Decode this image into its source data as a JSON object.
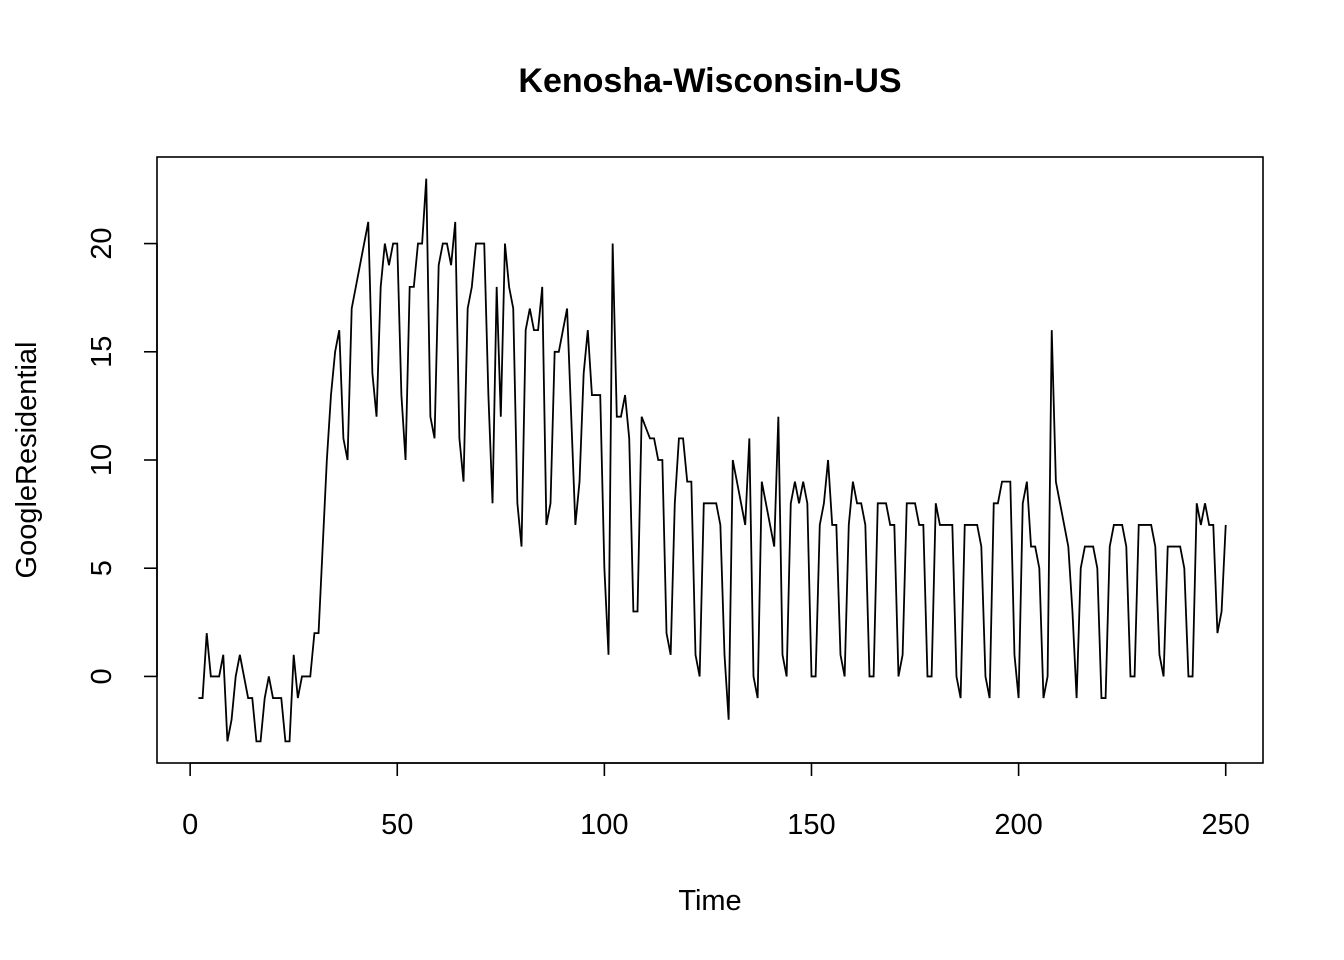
{
  "chart_data": {
    "type": "line",
    "title": "Kenosha-Wisconsin-US",
    "xlabel": "Time",
    "ylabel": "GoogleResidential",
    "xlim": [
      -8,
      259
    ],
    "ylim": [
      -4,
      24
    ],
    "x_ticks": [
      0,
      50,
      100,
      150,
      200,
      250
    ],
    "y_ticks": [
      0,
      5,
      10,
      15,
      20
    ],
    "grid": false,
    "legend": "none",
    "x_start": 2,
    "series": [
      {
        "values": [
          -1,
          -1,
          2,
          0,
          0,
          0,
          1,
          -3,
          -2,
          0,
          1,
          0,
          -1,
          -1,
          -3,
          -3,
          -1,
          0,
          -1,
          -1,
          -1,
          -3,
          -3,
          1,
          -1,
          0,
          0,
          0,
          2,
          2,
          6,
          10,
          13,
          15,
          16,
          11,
          10,
          17,
          18,
          19,
          20,
          21,
          14,
          12,
          18,
          20,
          19,
          20,
          20,
          13,
          10,
          18,
          18,
          20,
          20,
          23,
          12,
          11,
          19,
          20,
          20,
          19,
          21,
          11,
          9,
          17,
          18,
          20,
          20,
          20,
          13,
          8,
          18,
          12,
          20,
          18,
          17,
          8,
          6,
          16,
          17,
          16,
          16,
          18,
          7,
          8,
          15,
          15,
          16,
          17,
          12,
          7,
          9,
          14,
          16,
          13,
          13,
          13,
          5,
          1,
          20,
          12,
          12,
          13,
          11,
          3,
          3,
          12,
          11.5,
          11,
          11,
          10,
          10,
          2,
          1,
          8,
          11,
          11,
          9,
          9,
          1,
          0,
          8,
          8,
          8,
          8,
          7,
          1,
          -2,
          10,
          9,
          8,
          7,
          11,
          0,
          -1,
          9,
          8,
          7,
          6,
          12,
          1,
          0,
          8,
          9,
          8,
          9,
          8,
          0,
          0,
          7,
          8,
          10,
          7,
          7,
          1,
          0,
          7,
          9,
          8,
          8,
          7,
          0,
          0,
          8,
          8,
          8,
          7,
          7,
          0,
          1,
          8,
          8,
          8,
          7,
          7,
          0,
          0,
          8,
          7,
          7,
          7,
          7,
          0,
          -1,
          7,
          7,
          7,
          7,
          6,
          0,
          -1,
          8,
          8,
          9,
          9,
          9,
          1,
          -1,
          8,
          9,
          6,
          6,
          5,
          -1,
          0,
          16,
          9,
          8,
          7,
          6,
          3,
          -1,
          5,
          6,
          6,
          6,
          5,
          -1,
          -1,
          6,
          7,
          7,
          7,
          6,
          0,
          0,
          7,
          7,
          7,
          7,
          6,
          1,
          0,
          6,
          6,
          6,
          6,
          5,
          0,
          0,
          8,
          7,
          8,
          7,
          7,
          2,
          3,
          7
        ]
      }
    ]
  }
}
